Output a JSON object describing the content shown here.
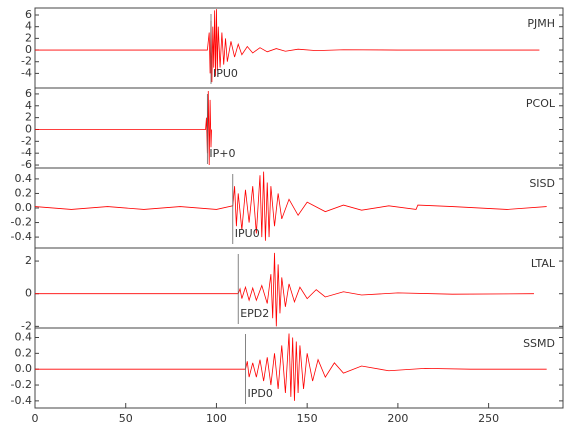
{
  "chart_data": [
    {
      "type": "line",
      "title": "PJMH",
      "pick": {
        "label": "IPU0",
        "x": 97
      },
      "color": "#ff0000",
      "xlim": [
        0,
        291
      ],
      "ylim": [
        -6.5,
        7.2
      ],
      "yticks": [
        -4,
        -2,
        0,
        2,
        4,
        6
      ],
      "x": [
        0,
        95,
        96,
        96.5,
        97,
        97.5,
        98,
        98.5,
        99,
        99.5,
        100,
        100.5,
        101,
        102,
        103,
        104,
        105,
        106,
        108,
        110,
        112,
        114,
        117,
        120,
        124,
        128,
        133,
        138,
        145,
        155,
        170,
        200,
        240,
        278
      ],
      "values": [
        0,
        0,
        3,
        -4,
        5,
        -5.5,
        4,
        -3,
        6.8,
        -4.5,
        7,
        -3.5,
        4,
        -3,
        3,
        -2.5,
        2,
        -2,
        1.5,
        -1.2,
        1,
        -0.8,
        0.6,
        -0.5,
        0.4,
        -0.3,
        0.25,
        -0.2,
        0.15,
        -0.1,
        0.05,
        0,
        0,
        0
      ]
    },
    {
      "type": "line",
      "title": "PCOL",
      "pick": {
        "label": "IP+0",
        "x": 95
      },
      "color": "#ff0000",
      "xlim": [
        0,
        291
      ],
      "ylim": [
        -6.5,
        7
      ],
      "yticks": [
        -6,
        -4,
        -2,
        0,
        2,
        4,
        6
      ],
      "x": [
        0,
        94,
        94.5,
        95,
        95.5,
        96,
        96.5,
        97,
        97.3
      ],
      "values": [
        0,
        0,
        2,
        -4,
        6.5,
        -6,
        5,
        -3,
        0
      ]
    },
    {
      "type": "line",
      "title": "SISD",
      "pick": {
        "label": "IPU0",
        "x": 109
      },
      "color": "#ff0000",
      "xlim": [
        0,
        291
      ],
      "ylim": [
        -0.55,
        0.55
      ],
      "yticks": [
        -0.4,
        -0.2,
        {
          "value": 0,
          "label": "0.0"
        },
        0.2,
        0.4
      ],
      "x": [
        0,
        20,
        40,
        60,
        80,
        100,
        109,
        110,
        111,
        112,
        114,
        116,
        118,
        120,
        122,
        124,
        125,
        126,
        127,
        128,
        129,
        130,
        132,
        134,
        136,
        140,
        145,
        150,
        160,
        170,
        180,
        195,
        210,
        211,
        230,
        260,
        282
      ],
      "values": [
        0.02,
        -0.02,
        0.02,
        -0.02,
        0.02,
        -0.02,
        0.03,
        0.3,
        -0.25,
        0.2,
        -0.3,
        0.25,
        -0.2,
        0.3,
        -0.35,
        0.45,
        -0.4,
        0.5,
        -0.45,
        0.35,
        -0.4,
        0.3,
        -0.25,
        0.2,
        -0.15,
        0.12,
        -0.1,
        0.08,
        -0.05,
        0.04,
        -0.03,
        0.03,
        -0.02,
        0.04,
        0.02,
        -0.02,
        0.02
      ]
    },
    {
      "type": "line",
      "title": "LTAL",
      "pick": {
        "label": "EPD2",
        "x": 112
      },
      "color": "#ff0000",
      "xlim": [
        0,
        291
      ],
      "ylim": [
        -2.1,
        2.8
      ],
      "yticks": [
        -2,
        0,
        2
      ],
      "x": [
        0,
        50,
        112,
        113,
        114,
        116,
        118,
        120,
        122,
        125,
        128,
        130,
        131,
        132,
        133,
        134,
        135,
        136,
        138,
        140,
        143,
        146,
        150,
        155,
        160,
        170,
        180,
        200,
        230,
        275
      ],
      "values": [
        0,
        0,
        0,
        0.3,
        -0.3,
        0.4,
        -0.4,
        0.35,
        -0.4,
        0.5,
        -0.6,
        1.2,
        -1.5,
        2.5,
        -2,
        1.8,
        -1.2,
        1,
        -0.8,
        0.6,
        -0.5,
        0.4,
        -0.3,
        0.25,
        -0.2,
        0.12,
        -0.08,
        0.05,
        -0.03,
        0
      ]
    },
    {
      "type": "line",
      "title": "SSMD",
      "pick": {
        "label": "IPD0",
        "x": 116
      },
      "color": "#ff0000",
      "xlim": [
        0,
        291
      ],
      "ylim": [
        -0.49,
        0.52
      ],
      "yticks": [
        -0.4,
        -0.2,
        {
          "value": 0,
          "label": "0.0"
        },
        0.2,
        0.4
      ],
      "xticks": [
        0,
        50,
        100,
        150,
        200,
        250
      ],
      "x": [
        0,
        60,
        116,
        117,
        118,
        120,
        122,
        124,
        126,
        128,
        130,
        132,
        134,
        136,
        138,
        140,
        141,
        142,
        143,
        144,
        145,
        146,
        148,
        150,
        153,
        156,
        160,
        165,
        170,
        180,
        195,
        215,
        240,
        282
      ],
      "values": [
        0,
        0,
        0,
        0.1,
        -0.1,
        0.08,
        -0.1,
        0.12,
        -0.15,
        0.15,
        -0.2,
        0.2,
        -0.25,
        0.3,
        -0.3,
        0.45,
        -0.35,
        0.4,
        -0.4,
        0.35,
        -0.3,
        0.3,
        -0.25,
        0.2,
        -0.15,
        0.12,
        -0.1,
        0.08,
        -0.05,
        0.04,
        -0.02,
        0.01,
        0,
        0
      ]
    }
  ]
}
